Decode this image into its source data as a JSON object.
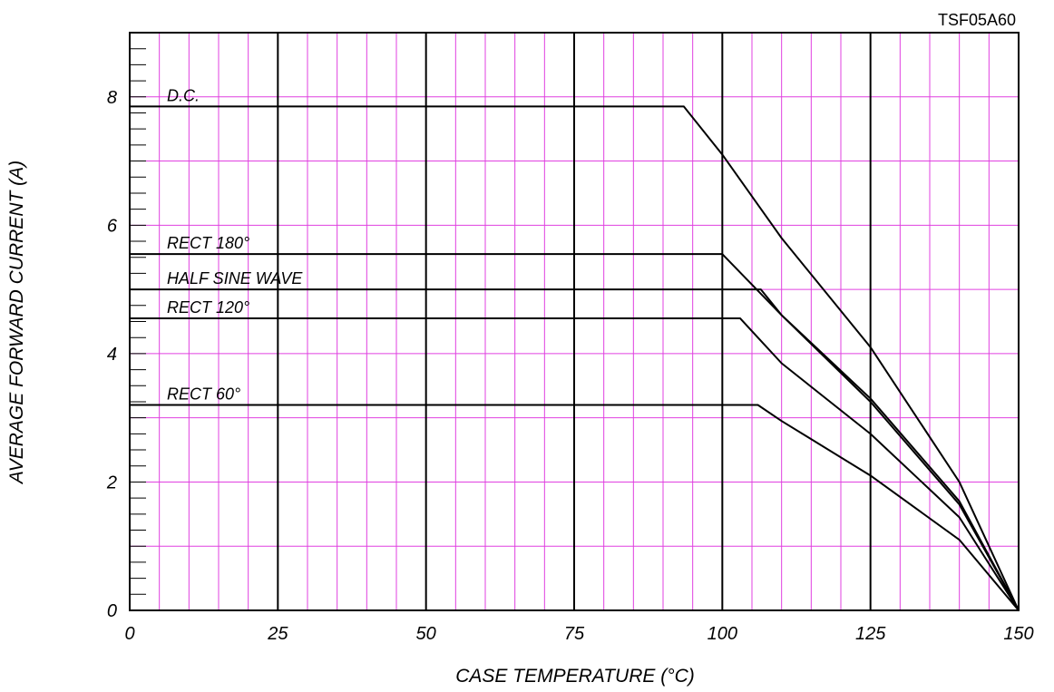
{
  "chart_data": {
    "type": "line",
    "part_number": "TSF05A60",
    "xlabel": "CASE TEMPERATURE (°C)",
    "ylabel": "AVERAGE FORWARD CURRENT (A)",
    "xlim": [
      0,
      150
    ],
    "ylim": [
      0,
      9
    ],
    "x_ticks": [
      0,
      25,
      50,
      75,
      100,
      125,
      150
    ],
    "x_tick_labels": [
      "0",
      "25",
      "50",
      "75",
      "100",
      "125",
      "150"
    ],
    "y_ticks": [
      0,
      2,
      4,
      6,
      8
    ],
    "y_tick_labels": [
      "0",
      "2",
      "4",
      "6",
      "8"
    ],
    "grid": true,
    "colors": {
      "minor_grid": "#e040e0",
      "major_grid": "#000000",
      "series": "#000000"
    },
    "series": [
      {
        "name": "D.C.",
        "x": [
          0,
          93.5,
          100,
          110,
          125,
          140,
          150
        ],
        "y": [
          7.85,
          7.85,
          7.1,
          5.8,
          4.1,
          2.0,
          0
        ]
      },
      {
        "name": "RECT 180°",
        "x": [
          0,
          100,
          110,
          125,
          140,
          150
        ],
        "y": [
          5.55,
          5.55,
          4.6,
          3.3,
          1.7,
          0
        ]
      },
      {
        "name": "HALF SINE WAVE",
        "x": [
          0,
          106.5,
          110,
          125,
          140,
          150
        ],
        "y": [
          5.0,
          5.0,
          4.6,
          3.25,
          1.65,
          0
        ]
      },
      {
        "name": "RECT 120°",
        "x": [
          0,
          103,
          110,
          125,
          140,
          150
        ],
        "y": [
          4.55,
          4.55,
          3.85,
          2.75,
          1.45,
          0
        ]
      },
      {
        "name": "RECT 60°",
        "x": [
          0,
          106,
          110,
          125,
          140,
          150
        ],
        "y": [
          3.2,
          3.2,
          2.95,
          2.1,
          1.1,
          0
        ]
      }
    ]
  }
}
